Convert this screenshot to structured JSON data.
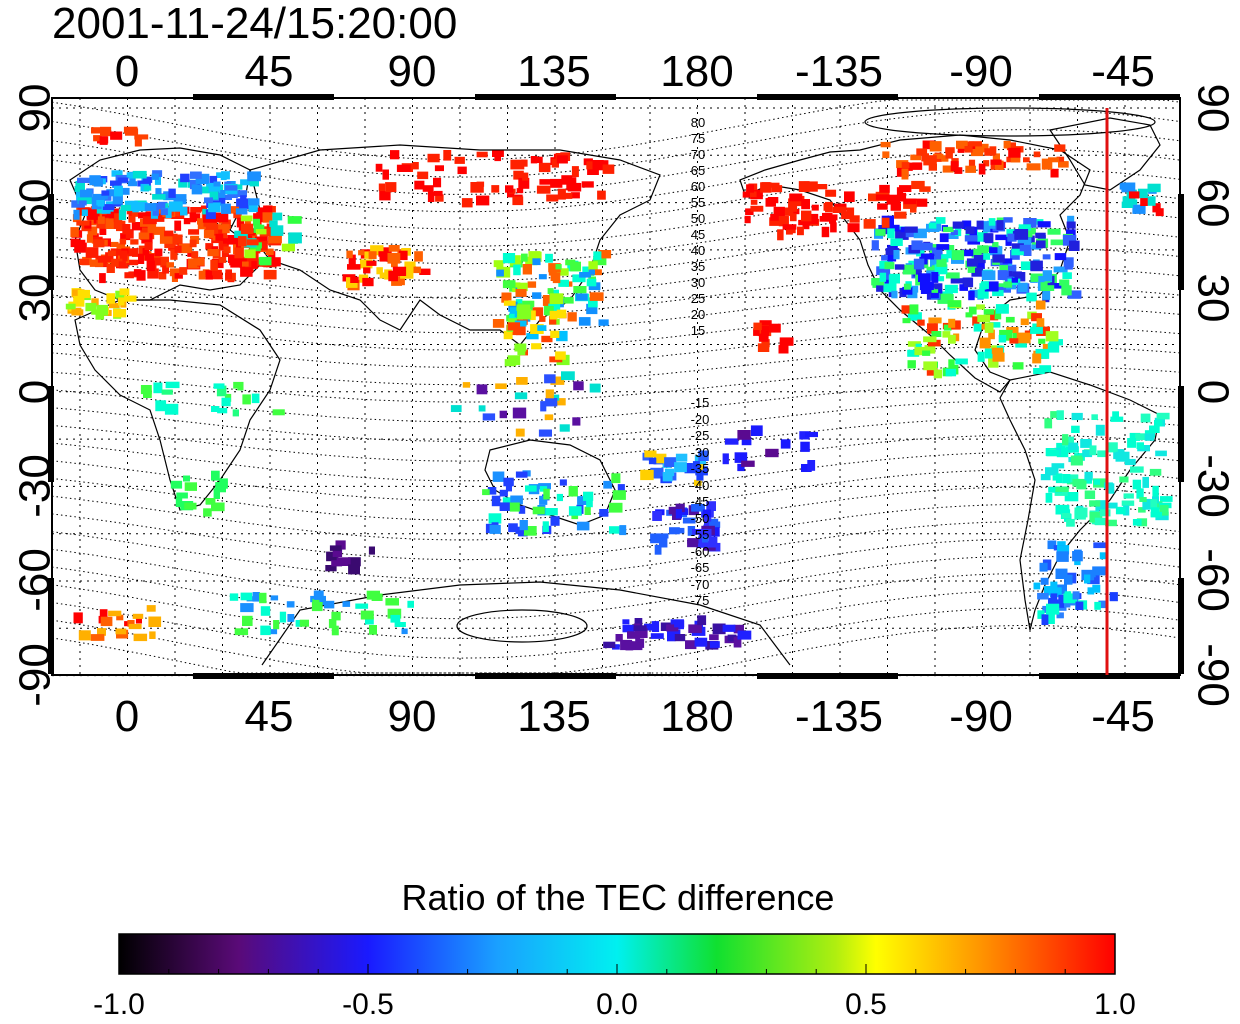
{
  "timestamp": "2001-11-24/15:20:00",
  "map": {
    "x_ticks_top": [
      "0",
      "45",
      "90",
      "135",
      "180",
      "-135",
      "-90",
      "-45"
    ],
    "x_ticks_bottom": [
      "0",
      "45",
      "90",
      "135",
      "180",
      "-135",
      "-90",
      "-45"
    ],
    "y_ticks_left": [
      "90",
      "60",
      "30",
      "0",
      "-30",
      "-60",
      "-90"
    ],
    "y_ticks_right": [
      "90",
      "60",
      "30",
      "0",
      "-30",
      "-60",
      "-90"
    ],
    "contour_labels_north": [
      "80",
      "75",
      "70",
      "65",
      "60",
      "55",
      "50",
      "45",
      "40",
      "35",
      "30",
      "25",
      "20",
      "15"
    ],
    "contour_labels_south": [
      "-15",
      "-20",
      "-25",
      "-30",
      "-35",
      "-40",
      "-45",
      "-50",
      "-55",
      "-60",
      "-65",
      "-70",
      "-75"
    ],
    "marker_line_color": "#e01010"
  },
  "colorbar": {
    "title": "Ratio of the TEC difference",
    "tick_labels": [
      "-1.0",
      "-0.5",
      "0.0",
      "0.5",
      "1.0"
    ],
    "range": [
      -1.0,
      1.0
    ],
    "colormap": "rainbow (black-purple-blue-cyan-green-yellow-orange-red)"
  }
}
